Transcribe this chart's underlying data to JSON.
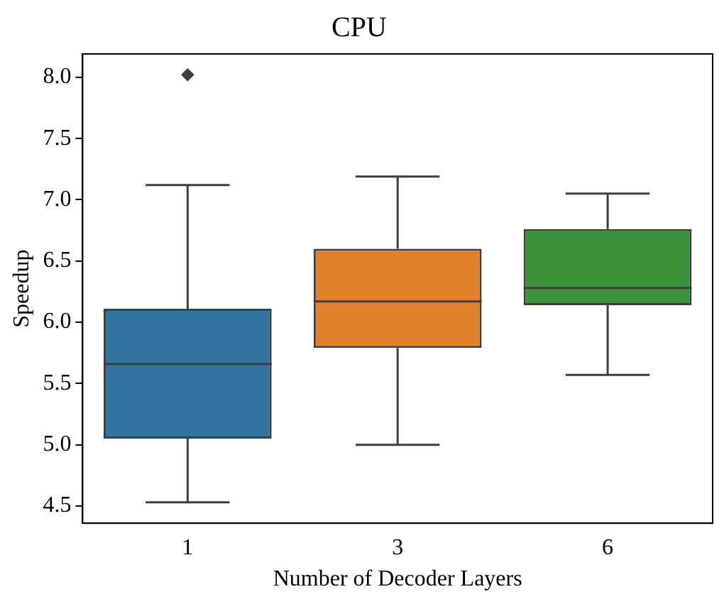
{
  "chart_data": {
    "type": "box",
    "title": "CPU",
    "xlabel": "Number of Decoder Layers",
    "ylabel": "Speedup",
    "categories": [
      "1",
      "3",
      "6"
    ],
    "colors": [
      "#3274a1",
      "#e1812c",
      "#3a923a"
    ],
    "boxes": [
      {
        "low": 4.53,
        "q1": 5.05,
        "median": 5.66,
        "q3": 6.11,
        "high": 7.12,
        "outliers": [
          8.02
        ]
      },
      {
        "low": 5.0,
        "q1": 5.79,
        "median": 6.17,
        "q3": 6.6,
        "high": 7.19
      },
      {
        "low": 5.57,
        "q1": 6.14,
        "median": 6.28,
        "q3": 6.76,
        "high": 7.05
      }
    ],
    "ylim": [
      4.36,
      8.19
    ],
    "yticks": [
      4.5,
      {
        "value": 5,
        "label": "5.0"
      },
      5.5,
      {
        "value": 6,
        "label": "6.0"
      },
      6.5,
      {
        "value": 7,
        "label": "7.0"
      },
      7.5,
      {
        "value": 8,
        "label": "8.0"
      }
    ],
    "grid": false,
    "legend": false,
    "marker": "diamond"
  }
}
